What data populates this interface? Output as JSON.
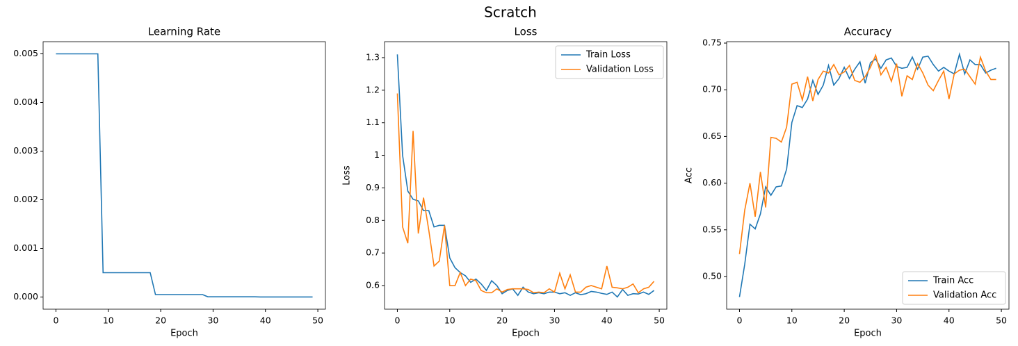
{
  "title": "Scratch",
  "chart_data": [
    {
      "type": "line",
      "title": "Learning Rate",
      "xlabel": "Epoch",
      "color": "#1f77b4",
      "x": [
        0,
        1,
        2,
        3,
        4,
        5,
        6,
        7,
        8,
        9,
        10,
        11,
        12,
        13,
        14,
        15,
        16,
        17,
        18,
        19,
        20,
        21,
        22,
        23,
        24,
        25,
        26,
        27,
        28,
        29,
        30,
        31,
        32,
        33,
        34,
        35,
        36,
        37,
        38,
        39,
        40,
        41,
        42,
        43,
        44,
        45,
        46,
        47,
        48,
        49
      ],
      "values": [
        0.005,
        0.005,
        0.005,
        0.005,
        0.005,
        0.005,
        0.005,
        0.005,
        0.005,
        0.0005,
        0.0005,
        0.0005,
        0.0005,
        0.0005,
        0.0005,
        0.0005,
        0.0005,
        0.0005,
        0.0005,
        5e-05,
        5e-05,
        5e-05,
        5e-05,
        5e-05,
        5e-05,
        5e-05,
        5e-05,
        5e-05,
        5e-05,
        5e-06,
        5e-06,
        5e-06,
        5e-06,
        5e-06,
        5e-06,
        5e-06,
        5e-06,
        5e-06,
        5e-06,
        5e-07,
        5e-07,
        5e-07,
        5e-07,
        5e-07,
        5e-07,
        5e-07,
        5e-07,
        5e-07,
        5e-07,
        5e-07
      ],
      "xlim": [
        -2.45,
        51.45
      ],
      "xticks": [
        0,
        10,
        20,
        30,
        40,
        50
      ],
      "ylim": [
        -0.00025,
        0.00525
      ],
      "yticks": [
        {
          "value": 0,
          "label": "0.000"
        },
        {
          "value": 0.001,
          "label": "0.001"
        },
        {
          "value": 0.002,
          "label": "0.002"
        },
        {
          "value": 0.003,
          "label": "0.003"
        },
        {
          "value": 0.004,
          "label": "0.004"
        },
        {
          "value": 0.005,
          "label": "0.005"
        }
      ]
    },
    {
      "type": "line",
      "title": "Loss",
      "xlabel": "Epoch",
      "ylabel": "Loss",
      "legend": "upper right",
      "x": [
        0,
        1,
        2,
        3,
        4,
        5,
        6,
        7,
        8,
        9,
        10,
        11,
        12,
        13,
        14,
        15,
        16,
        17,
        18,
        19,
        20,
        21,
        22,
        23,
        24,
        25,
        26,
        27,
        28,
        29,
        30,
        31,
        32,
        33,
        34,
        35,
        36,
        37,
        38,
        39,
        40,
        41,
        42,
        43,
        44,
        45,
        46,
        47,
        48,
        49
      ],
      "series": [
        {
          "name": "Train Loss",
          "color": "#1f77b4",
          "values": [
            1.31,
            1.0,
            0.89,
            0.865,
            0.86,
            0.83,
            0.83,
            0.78,
            0.785,
            0.785,
            0.685,
            0.655,
            0.64,
            0.63,
            0.61,
            0.62,
            0.605,
            0.585,
            0.615,
            0.6,
            0.575,
            0.585,
            0.59,
            0.57,
            0.595,
            0.58,
            0.575,
            0.578,
            0.575,
            0.58,
            0.58,
            0.575,
            0.578,
            0.57,
            0.578,
            0.572,
            0.575,
            0.582,
            0.58,
            0.576,
            0.573,
            0.58,
            0.565,
            0.588,
            0.57,
            0.575,
            0.574,
            0.58,
            0.573,
            0.585
          ]
        },
        {
          "name": "Validation Loss",
          "color": "#ff7f0e",
          "values": [
            1.19,
            0.78,
            0.73,
            1.075,
            0.76,
            0.87,
            0.77,
            0.66,
            0.675,
            0.785,
            0.6,
            0.6,
            0.64,
            0.6,
            0.62,
            0.615,
            0.585,
            0.578,
            0.578,
            0.59,
            0.58,
            0.588,
            0.59,
            0.59,
            0.59,
            0.588,
            0.578,
            0.58,
            0.578,
            0.59,
            0.58,
            0.638,
            0.59,
            0.633,
            0.58,
            0.58,
            0.595,
            0.6,
            0.595,
            0.59,
            0.66,
            0.595,
            0.593,
            0.59,
            0.595,
            0.605,
            0.578,
            0.59,
            0.595,
            0.613
          ]
        }
      ],
      "xlim": [
        -2.45,
        51.45
      ],
      "xticks": [
        0,
        10,
        20,
        30,
        40,
        50
      ],
      "ylim": [
        0.5275,
        1.349
      ],
      "yticks": [
        0.6,
        0.7,
        0.8,
        0.9,
        1.0,
        1.1,
        1.2,
        1.3
      ]
    },
    {
      "type": "line",
      "title": "Accuracy",
      "xlabel": "Epoch",
      "ylabel": "Acc",
      "legend": "lower right",
      "x": [
        0,
        1,
        2,
        3,
        4,
        5,
        6,
        7,
        8,
        9,
        10,
        11,
        12,
        13,
        14,
        15,
        16,
        17,
        18,
        19,
        20,
        21,
        22,
        23,
        24,
        25,
        26,
        27,
        28,
        29,
        30,
        31,
        32,
        33,
        34,
        35,
        36,
        37,
        38,
        39,
        40,
        41,
        42,
        43,
        44,
        45,
        46,
        47,
        48,
        49
      ],
      "series": [
        {
          "name": "Train Acc",
          "color": "#1f77b4",
          "values": [
            0.478,
            0.513,
            0.556,
            0.551,
            0.567,
            0.596,
            0.587,
            0.596,
            0.597,
            0.615,
            0.665,
            0.683,
            0.681,
            0.69,
            0.71,
            0.695,
            0.705,
            0.726,
            0.705,
            0.712,
            0.724,
            0.712,
            0.722,
            0.73,
            0.707,
            0.729,
            0.733,
            0.723,
            0.732,
            0.734,
            0.725,
            0.723,
            0.724,
            0.735,
            0.722,
            0.735,
            0.736,
            0.727,
            0.72,
            0.724,
            0.72,
            0.717,
            0.738,
            0.717,
            0.732,
            0.727,
            0.727,
            0.718,
            0.721,
            0.723
          ]
        },
        {
          "name": "Validation Acc",
          "color": "#ff7f0e",
          "values": [
            0.524,
            0.571,
            0.6,
            0.564,
            0.612,
            0.574,
            0.649,
            0.648,
            0.644,
            0.66,
            0.706,
            0.708,
            0.689,
            0.714,
            0.688,
            0.711,
            0.72,
            0.718,
            0.727,
            0.716,
            0.719,
            0.726,
            0.71,
            0.708,
            0.714,
            0.724,
            0.737,
            0.716,
            0.724,
            0.709,
            0.728,
            0.693,
            0.715,
            0.711,
            0.728,
            0.718,
            0.705,
            0.699,
            0.71,
            0.72,
            0.69,
            0.717,
            0.721,
            0.722,
            0.714,
            0.706,
            0.735,
            0.72,
            0.711,
            0.711
          ]
        }
      ],
      "xlim": [
        -2.45,
        51.45
      ],
      "xticks": [
        0,
        10,
        20,
        30,
        40,
        50
      ],
      "ylim": [
        0.465,
        0.7515
      ],
      "yticks": [
        {
          "value": 0.5,
          "label": "0.50"
        },
        {
          "value": 0.55,
          "label": "0.55"
        },
        {
          "value": 0.6,
          "label": "0.60"
        },
        {
          "value": 0.65,
          "label": "0.65"
        },
        {
          "value": 0.7,
          "label": "0.70"
        },
        {
          "value": 0.75,
          "label": "0.75"
        }
      ]
    }
  ]
}
